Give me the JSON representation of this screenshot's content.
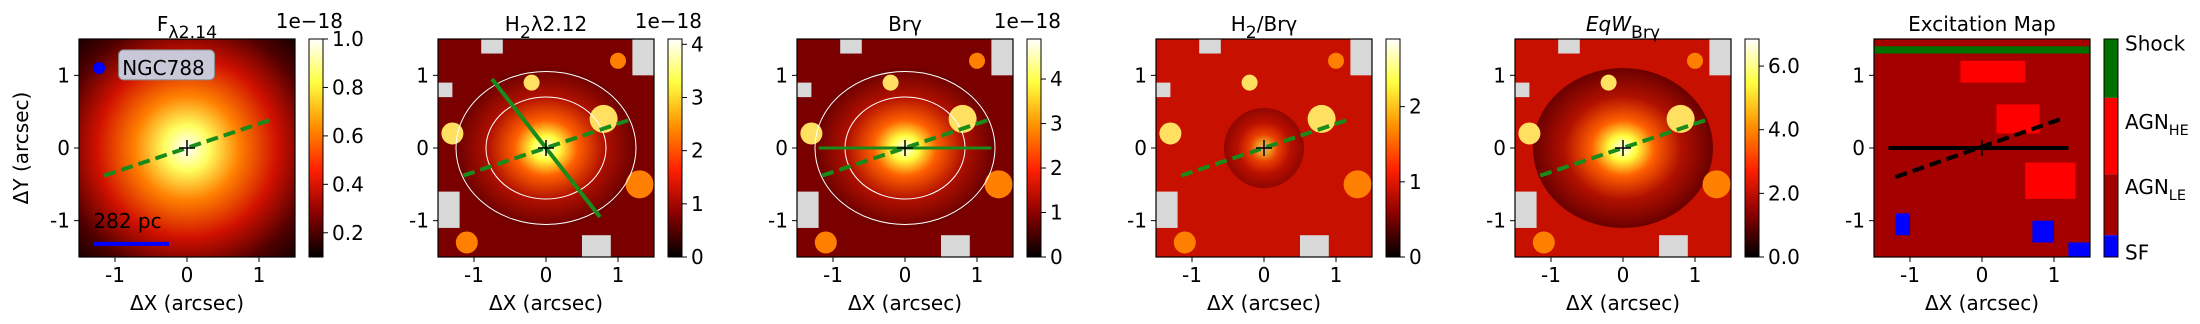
{
  "chart_data": [
    {
      "type": "heatmap",
      "title": [
        {
          "t": "F"
        },
        {
          "t": "λ2.14",
          "sub": true
        }
      ],
      "xlabel": "ΔX (arcsec)",
      "ylabel": "ΔY (arcsec)",
      "xlim": [
        -1.5,
        1.5
      ],
      "ylim": [
        -1.5,
        1.5
      ],
      "xticks": [
        -1,
        0,
        1
      ],
      "yticks": [
        -1,
        0,
        1
      ],
      "annotations": [
        "NGC788",
        "282 pc"
      ],
      "colorbar": {
        "lim": [
          0.1,
          1.0
        ],
        "ticks": [
          0.2,
          0.4,
          0.6,
          0.8,
          {
            "value": 1,
            "label": "1.0"
          }
        ],
        "offset_text": "1e−18",
        "colors": [
          "#000000",
          "#8b0000",
          "#ff2000",
          "#ff9000",
          "#ffff40",
          "#ffffff"
        ]
      }
    },
    {
      "type": "heatmap",
      "title": [
        {
          "t": "H"
        },
        {
          "t": "2",
          "sub": true
        },
        {
          "t": "λ2.12"
        }
      ],
      "xlabel": "ΔX (arcsec)",
      "xlim": [
        -1.5,
        1.5
      ],
      "ylim": [
        -1.5,
        1.5
      ],
      "xticks": [
        -1,
        0,
        1
      ],
      "yticks": [
        -1,
        0,
        1
      ],
      "colorbar": {
        "lim": [
          0,
          4.1
        ],
        "ticks": [
          0,
          1,
          2,
          3,
          4
        ],
        "offset_text": "1e−18",
        "colors": [
          "#000000",
          "#8b0000",
          "#ff2000",
          "#ff9000",
          "#ffff40",
          "#ffffff"
        ]
      }
    },
    {
      "type": "heatmap",
      "title": [
        {
          "t": "Brγ"
        }
      ],
      "xlabel": "ΔX (arcsec)",
      "xlim": [
        -1.5,
        1.5
      ],
      "ylim": [
        -1.5,
        1.5
      ],
      "xticks": [
        -1,
        0,
        1
      ],
      "yticks": [
        -1,
        0,
        1
      ],
      "colorbar": {
        "lim": [
          0,
          4.9
        ],
        "ticks": [
          0,
          1,
          2,
          3,
          4
        ],
        "offset_text": "1e−18",
        "colors": [
          "#000000",
          "#8b0000",
          "#ff2000",
          "#ff9000",
          "#ffff40",
          "#ffffff"
        ]
      }
    },
    {
      "type": "heatmap",
      "title": [
        {
          "t": "H"
        },
        {
          "t": "2",
          "sub": true
        },
        {
          "t": "/Brγ"
        }
      ],
      "xlabel": "ΔX (arcsec)",
      "xlim": [
        -1.5,
        1.5
      ],
      "ylim": [
        -1.5,
        1.5
      ],
      "xticks": [
        -1,
        0,
        1
      ],
      "yticks": [
        -1,
        0,
        1
      ],
      "colorbar": {
        "lim": [
          0,
          2.9
        ],
        "ticks": [
          0,
          1,
          2
        ],
        "colors": [
          "#000000",
          "#8b0000",
          "#ff2000",
          "#ff9000",
          "#ffff40",
          "#ffffff"
        ]
      }
    },
    {
      "type": "heatmap",
      "title": [
        {
          "t": "EqW",
          "italic": true
        },
        {
          "t": "Brγ",
          "sub": true
        }
      ],
      "xlabel": "ΔX (arcsec)",
      "xlim": [
        -1.5,
        1.5
      ],
      "ylim": [
        -1.5,
        1.5
      ],
      "xticks": [
        -1,
        0,
        1
      ],
      "yticks": [
        -1,
        0,
        1
      ],
      "colorbar": {
        "lim": [
          0,
          6.85
        ],
        "ticks": [
          {
            "value": 0,
            "label": "0.0"
          },
          {
            "value": 2,
            "label": "2.0"
          },
          {
            "value": 4,
            "label": "4.0"
          },
          {
            "value": 6,
            "label": "6.0"
          }
        ],
        "colors": [
          "#000000",
          "#8b0000",
          "#ff2000",
          "#ff9000",
          "#ffff40",
          "#ffffff"
        ]
      }
    },
    {
      "type": "classmap",
      "title": [
        {
          "t": "Excitation Map"
        }
      ],
      "xlabel": "ΔX (arcsec)",
      "xlim": [
        -1.5,
        1.5
      ],
      "ylim": [
        -1.5,
        1.5
      ],
      "xticks": [
        -1,
        0,
        1
      ],
      "yticks": [
        -1,
        0,
        1
      ],
      "colorbar": {
        "labels": [
          [
            {
              "t": "Shock"
            }
          ],
          [
            {
              "t": "AGN"
            },
            {
              "t": "HE",
              "sub": true
            }
          ],
          [
            {
              "t": "AGN"
            },
            {
              "t": "LE",
              "sub": true
            }
          ],
          [
            {
              "t": "SF"
            }
          ]
        ],
        "colors": [
          "#007000",
          "#ff0000",
          "#a50000",
          "#0000ff"
        ]
      }
    }
  ]
}
